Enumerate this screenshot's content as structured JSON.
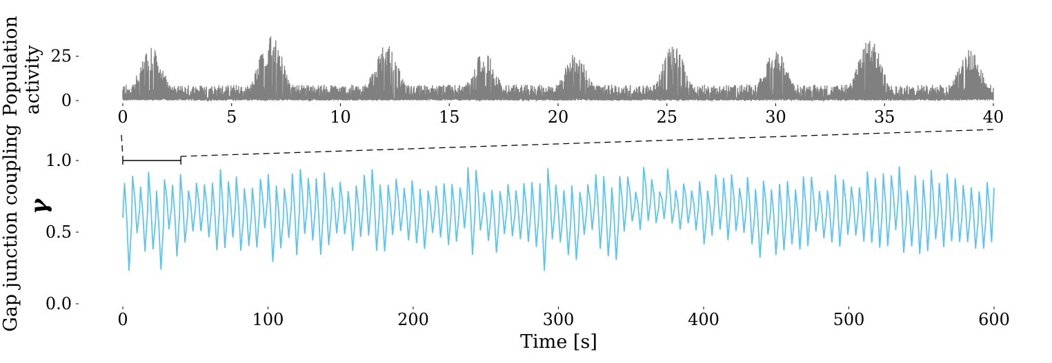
{
  "chart_data": [
    {
      "type": "line",
      "ylabel": "Population activity",
      "ylabel_lines": [
        "Population",
        "activity"
      ],
      "xlabel": "",
      "xlim": [
        0,
        40
      ],
      "ylim": [
        0,
        38
      ],
      "xticks": [
        0,
        5,
        10,
        15,
        20,
        25,
        30,
        35,
        40
      ],
      "xtick_labels": [
        "0",
        "5",
        "10",
        "15",
        "20",
        "25",
        "30",
        "35",
        "40"
      ],
      "yticks": [
        0,
        25
      ],
      "ytick_labels": [
        "0",
        "25"
      ],
      "grid": false,
      "series_color": "#808080",
      "burst_centers": [
        1.3,
        6.8,
        12.1,
        16.6,
        20.8,
        25.3,
        30.0,
        34.3,
        38.9
      ],
      "burst_peaks": [
        30,
        38,
        32,
        28,
        28,
        31,
        29,
        36,
        29
      ],
      "baseline_level": 6
    },
    {
      "type": "line",
      "xlabel": "Time [s]",
      "ylabel": "Gap junction coupling",
      "ylabel_symbol": "γ",
      "xlim": [
        0,
        600
      ],
      "ylim": [
        0,
        1.0
      ],
      "xticks": [
        0,
        100,
        200,
        300,
        400,
        500,
        600
      ],
      "xtick_labels": [
        "0",
        "100",
        "200",
        "300",
        "400",
        "500",
        "600"
      ],
      "yticks": [
        0.0,
        0.5,
        1.0
      ],
      "ytick_labels": [
        "0.0",
        "0.5",
        "1.0"
      ],
      "grid": false,
      "series_color": "#5bc4f1",
      "oscillation_period": 5.5,
      "start_value": 0.6,
      "end_value": 0.81,
      "peak_range": [
        0.78,
        0.97
      ],
      "trough_range": [
        0.23,
        0.55
      ],
      "zoom_window": [
        0,
        40
      ],
      "zoom_bracket_level": 1.0
    }
  ]
}
